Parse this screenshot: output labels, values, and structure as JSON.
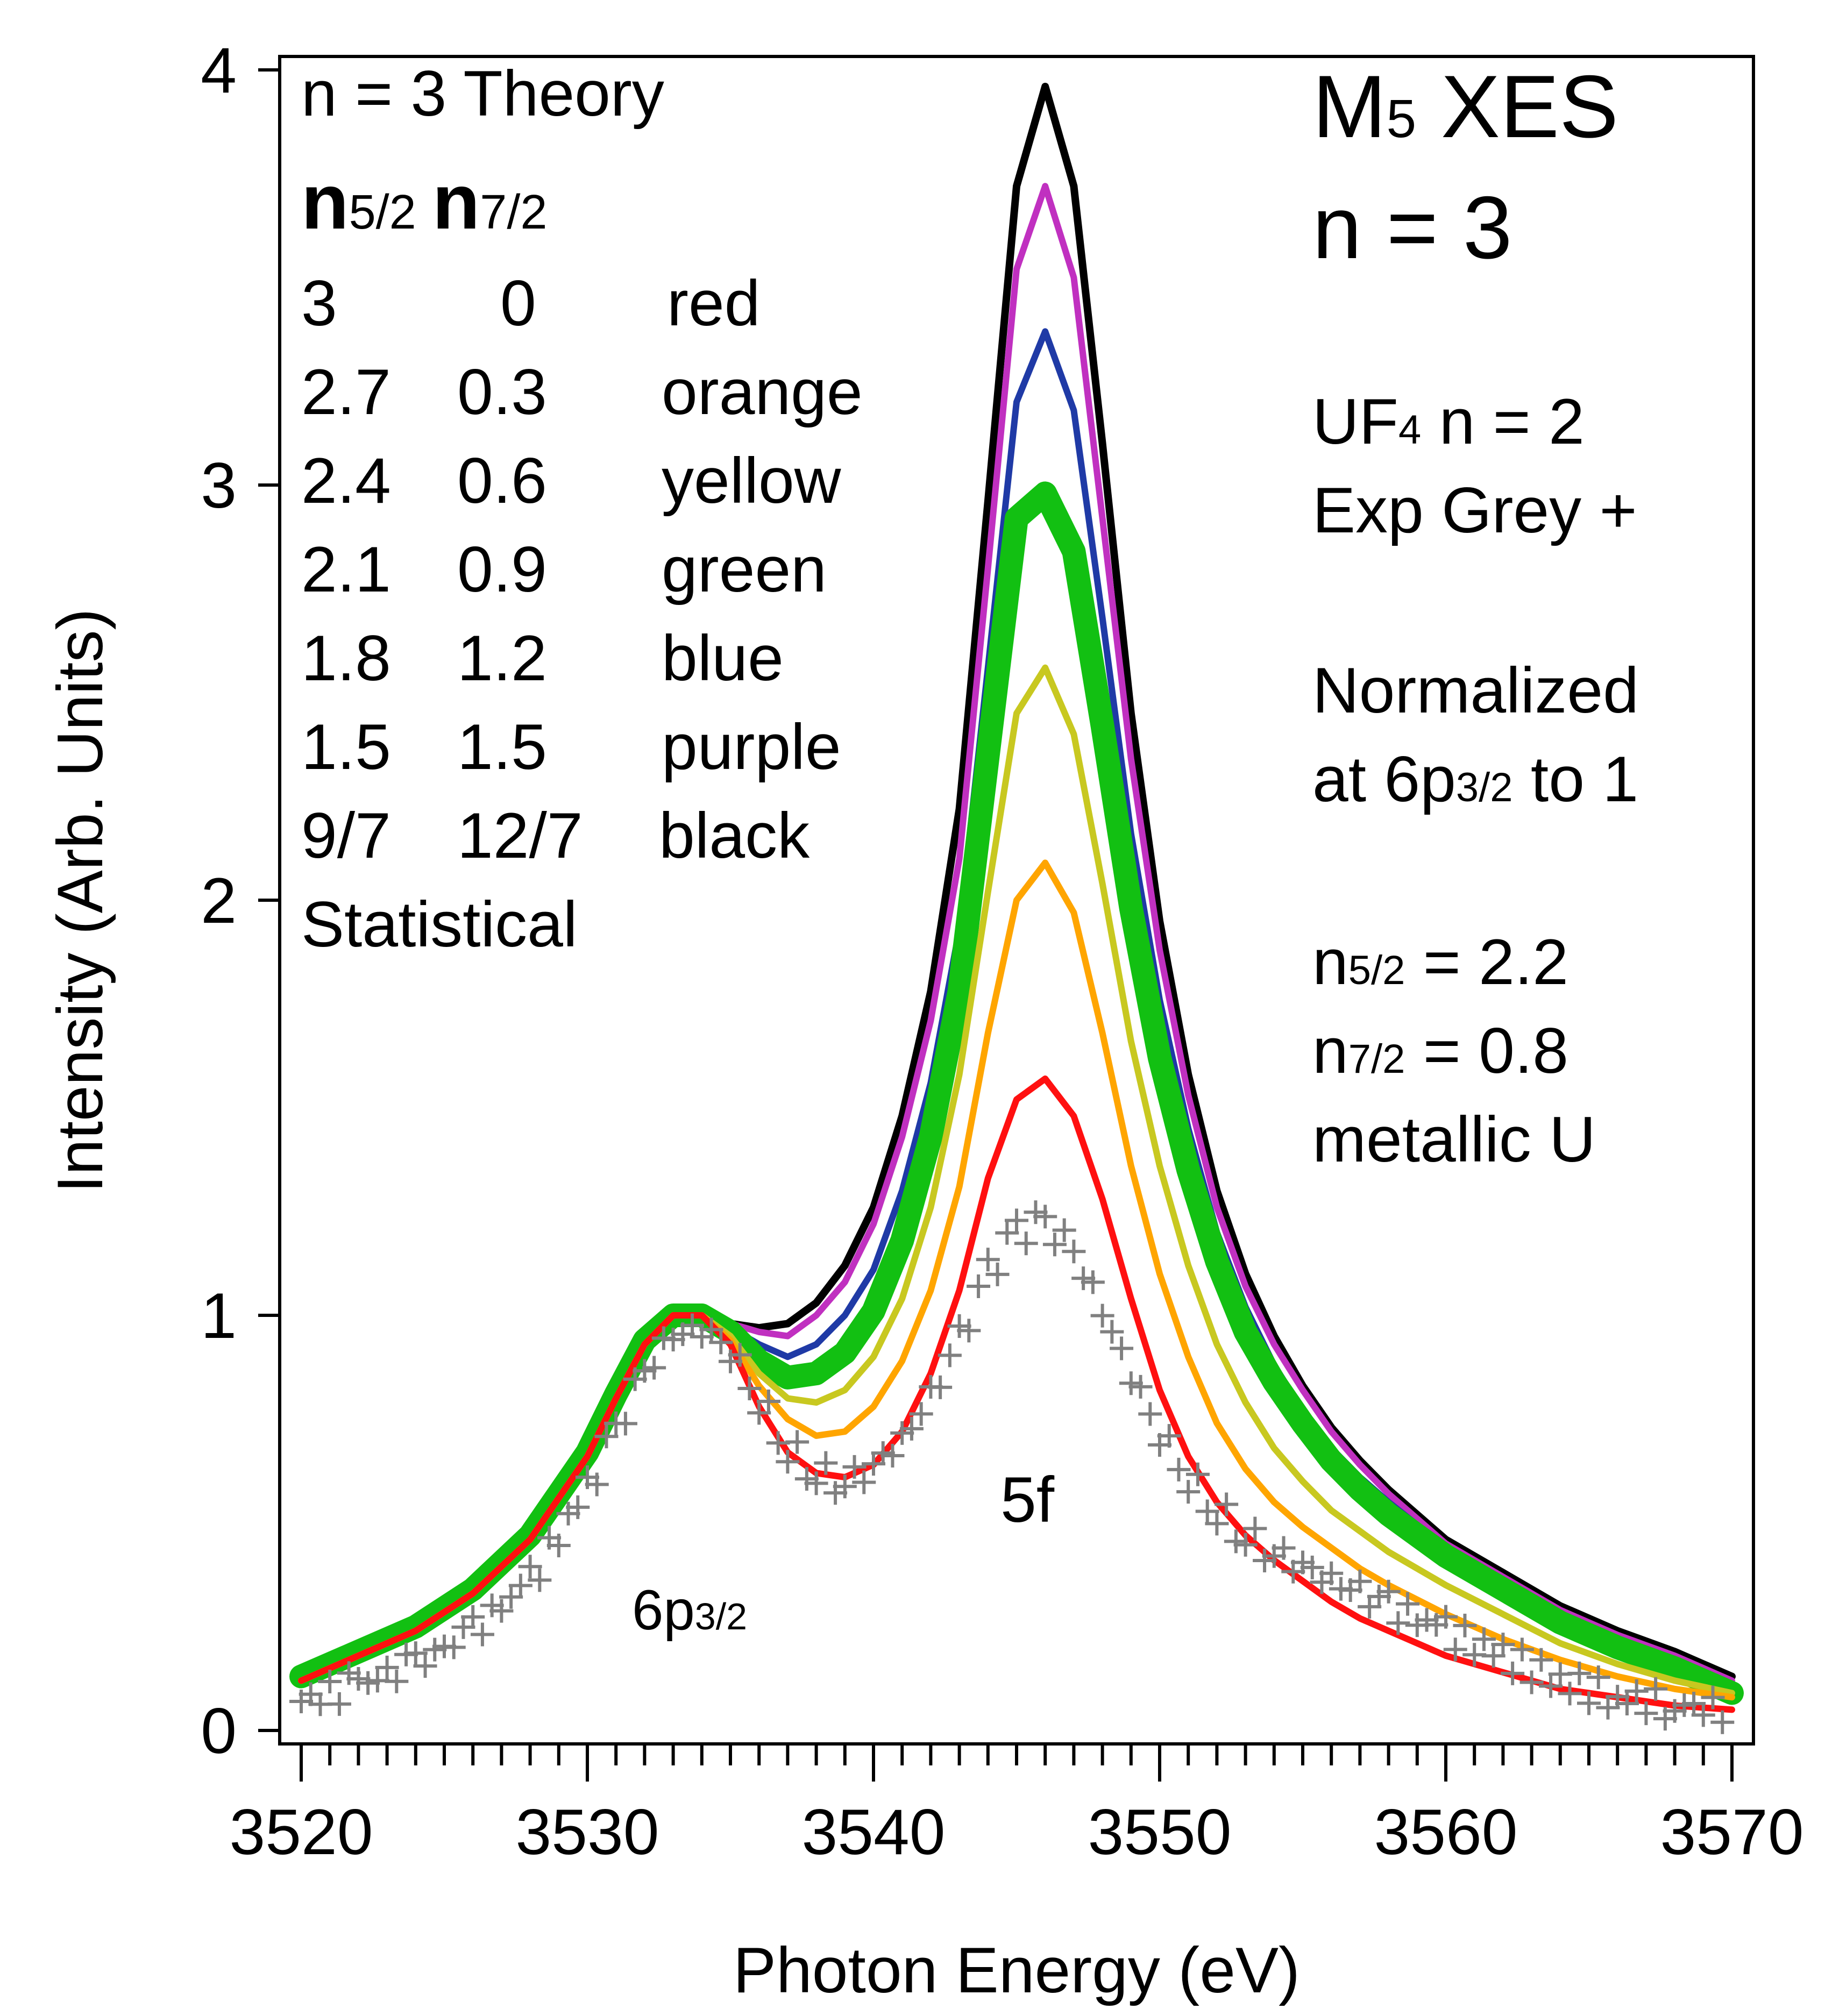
{
  "chart_data": {
    "type": "line",
    "title": "M5 XES n = 3",
    "title_parts": {
      "line1_base": "M",
      "line1_sub": "5",
      "line1_rest": " XES",
      "line2": "n = 3"
    },
    "xlabel": "Photon Energy (eV)",
    "ylabel": "Intensity (Arb. Units)",
    "xlim": [
      3519.2,
      3571
    ],
    "ylim": [
      -0.05,
      4.1
    ],
    "x_ticks": [
      3520,
      3530,
      3540,
      3550,
      3560,
      3570
    ],
    "x_tick_labels": [
      "3520",
      "3530",
      "3540",
      "3550",
      "3560",
      "3570"
    ],
    "x_minor_step": 1,
    "y_ticks": [
      0,
      1,
      2,
      3,
      4
    ],
    "y_tick_labels": [
      "0",
      "1",
      "2",
      "3",
      "4"
    ],
    "legend": {
      "heading": "n = 3 Theory",
      "col_headers": {
        "n52_base": "n",
        "n52_sub": "5/2",
        "n72_base": "n",
        "n72_sub": "7/2"
      },
      "rows": [
        {
          "n52": "3",
          "n72": "0",
          "color_name": "red"
        },
        {
          "n52": "2.7",
          "n72": "0.3",
          "color_name": "orange"
        },
        {
          "n52": "2.4",
          "n72": "0.6",
          "color_name": "yellow"
        },
        {
          "n52": "2.1",
          "n72": "0.9",
          "color_name": "green"
        },
        {
          "n52": "1.8",
          "n72": "1.2",
          "color_name": "blue"
        },
        {
          "n52": "1.5",
          "n72": "1.5",
          "color_name": "purple"
        },
        {
          "n52": "9/7",
          "n72": "12/7",
          "color_name": "black"
        }
      ],
      "footer": "Statistical"
    },
    "side_notes": {
      "uf4_base": "UF",
      "uf4_sub": "4",
      "uf4_rest": " n = 2",
      "exp": "Exp Grey +",
      "normalized": "Normalized",
      "at_base": "at 6p",
      "at_sub": "3/2",
      "at_rest": " to 1",
      "n52_base": "n",
      "n52_sub": "5/2",
      "n52_rest": " = 2.2",
      "n72_base": "n",
      "n72_sub": "7/2",
      "n72_rest": " = 0.8",
      "metal": "metallic U"
    },
    "annotations": {
      "peak_5f": "5f",
      "peak_6p_base": "6p",
      "peak_6p_sub": "3/2"
    },
    "x": [
      3520,
      3522,
      3524,
      3526,
      3528,
      3530,
      3531,
      3532,
      3533,
      3534,
      3535,
      3536,
      3537,
      3538,
      3539,
      3540,
      3541,
      3542,
      3543,
      3544,
      3545,
      3546,
      3547,
      3548,
      3549,
      3550,
      3551,
      3552,
      3553,
      3554,
      3555,
      3556,
      3557,
      3558,
      3560,
      3562,
      3564,
      3566,
      3568,
      3570
    ],
    "series": [
      {
        "name": "black",
        "color": "#000000",
        "width": 14,
        "values": [
          0.12,
          0.18,
          0.24,
          0.33,
          0.46,
          0.66,
          0.8,
          0.93,
          1.0,
          1.0,
          0.98,
          0.97,
          0.98,
          1.03,
          1.12,
          1.26,
          1.48,
          1.78,
          2.22,
          2.96,
          3.72,
          3.96,
          3.72,
          3.1,
          2.45,
          1.95,
          1.58,
          1.3,
          1.1,
          0.95,
          0.83,
          0.73,
          0.65,
          0.58,
          0.46,
          0.38,
          0.3,
          0.24,
          0.19,
          0.13
        ]
      },
      {
        "name": "purple",
        "color": "#c030c0",
        "width": 12,
        "values": [
          0.12,
          0.18,
          0.24,
          0.33,
          0.46,
          0.66,
          0.8,
          0.93,
          1.0,
          1.0,
          0.98,
          0.96,
          0.95,
          1.0,
          1.08,
          1.22,
          1.43,
          1.71,
          2.1,
          2.8,
          3.52,
          3.72,
          3.5,
          2.92,
          2.34,
          1.88,
          1.53,
          1.26,
          1.07,
          0.93,
          0.82,
          0.72,
          0.64,
          0.57,
          0.45,
          0.37,
          0.29,
          0.23,
          0.18,
          0.12
        ]
      },
      {
        "name": "blue",
        "color": "#1f3aa6",
        "width": 12,
        "values": [
          0.12,
          0.18,
          0.24,
          0.33,
          0.46,
          0.66,
          0.8,
          0.93,
          1.0,
          1.0,
          0.97,
          0.93,
          0.9,
          0.93,
          1.0,
          1.11,
          1.3,
          1.56,
          1.93,
          2.56,
          3.2,
          3.37,
          3.18,
          2.68,
          2.16,
          1.76,
          1.45,
          1.2,
          1.02,
          0.88,
          0.77,
          0.68,
          0.61,
          0.55,
          0.44,
          0.36,
          0.28,
          0.22,
          0.17,
          0.11
        ]
      },
      {
        "name": "green",
        "color": "#12c012",
        "width": 44,
        "values": [
          0.13,
          0.19,
          0.25,
          0.34,
          0.47,
          0.67,
          0.81,
          0.94,
          1.0,
          1.0,
          0.96,
          0.89,
          0.85,
          0.86,
          0.91,
          1.01,
          1.18,
          1.43,
          1.78,
          2.35,
          2.92,
          2.98,
          2.84,
          2.42,
          1.98,
          1.62,
          1.35,
          1.13,
          0.96,
          0.84,
          0.74,
          0.65,
          0.58,
          0.52,
          0.42,
          0.34,
          0.26,
          0.2,
          0.15,
          0.09
        ]
      },
      {
        "name": "yellow",
        "color": "#c8c820",
        "width": 12,
        "values": [
          0.12,
          0.18,
          0.24,
          0.33,
          0.46,
          0.66,
          0.8,
          0.93,
          1.0,
          1.0,
          0.95,
          0.86,
          0.8,
          0.79,
          0.82,
          0.9,
          1.04,
          1.26,
          1.58,
          2.02,
          2.45,
          2.56,
          2.4,
          2.04,
          1.66,
          1.36,
          1.12,
          0.93,
          0.79,
          0.68,
          0.6,
          0.53,
          0.48,
          0.43,
          0.35,
          0.28,
          0.21,
          0.16,
          0.12,
          0.09
        ]
      },
      {
        "name": "orange",
        "color": "#ffa500",
        "width": 12,
        "values": [
          0.12,
          0.18,
          0.24,
          0.33,
          0.46,
          0.66,
          0.8,
          0.93,
          1.0,
          1.0,
          0.94,
          0.83,
          0.75,
          0.71,
          0.72,
          0.78,
          0.89,
          1.06,
          1.31,
          1.68,
          2.0,
          2.09,
          1.97,
          1.68,
          1.36,
          1.1,
          0.9,
          0.74,
          0.63,
          0.55,
          0.49,
          0.44,
          0.39,
          0.35,
          0.28,
          0.22,
          0.17,
          0.13,
          0.1,
          0.08
        ]
      },
      {
        "name": "red",
        "color": "#ff1010",
        "width": 12,
        "values": [
          0.12,
          0.18,
          0.24,
          0.33,
          0.46,
          0.66,
          0.8,
          0.93,
          1.0,
          1.0,
          0.93,
          0.78,
          0.67,
          0.62,
          0.61,
          0.64,
          0.72,
          0.86,
          1.06,
          1.33,
          1.52,
          1.57,
          1.48,
          1.28,
          1.04,
          0.82,
          0.66,
          0.55,
          0.47,
          0.41,
          0.36,
          0.31,
          0.27,
          0.24,
          0.18,
          0.14,
          0.1,
          0.08,
          0.06,
          0.05
        ]
      },
      {
        "name": "Exp Grey",
        "color": "#808080",
        "width": 0,
        "marker": "+",
        "values": [
          0.07,
          0.11,
          0.16,
          0.24,
          0.36,
          0.58,
          0.72,
          0.86,
          0.95,
          0.97,
          0.92,
          0.8,
          0.68,
          0.62,
          0.6,
          0.64,
          0.7,
          0.8,
          0.94,
          1.1,
          1.2,
          1.22,
          1.15,
          1.01,
          0.86,
          0.72,
          0.61,
          0.53,
          0.47,
          0.43,
          0.4,
          0.36,
          0.33,
          0.3,
          0.24,
          0.18,
          0.12,
          0.08,
          0.06,
          0.05
        ]
      }
    ]
  }
}
